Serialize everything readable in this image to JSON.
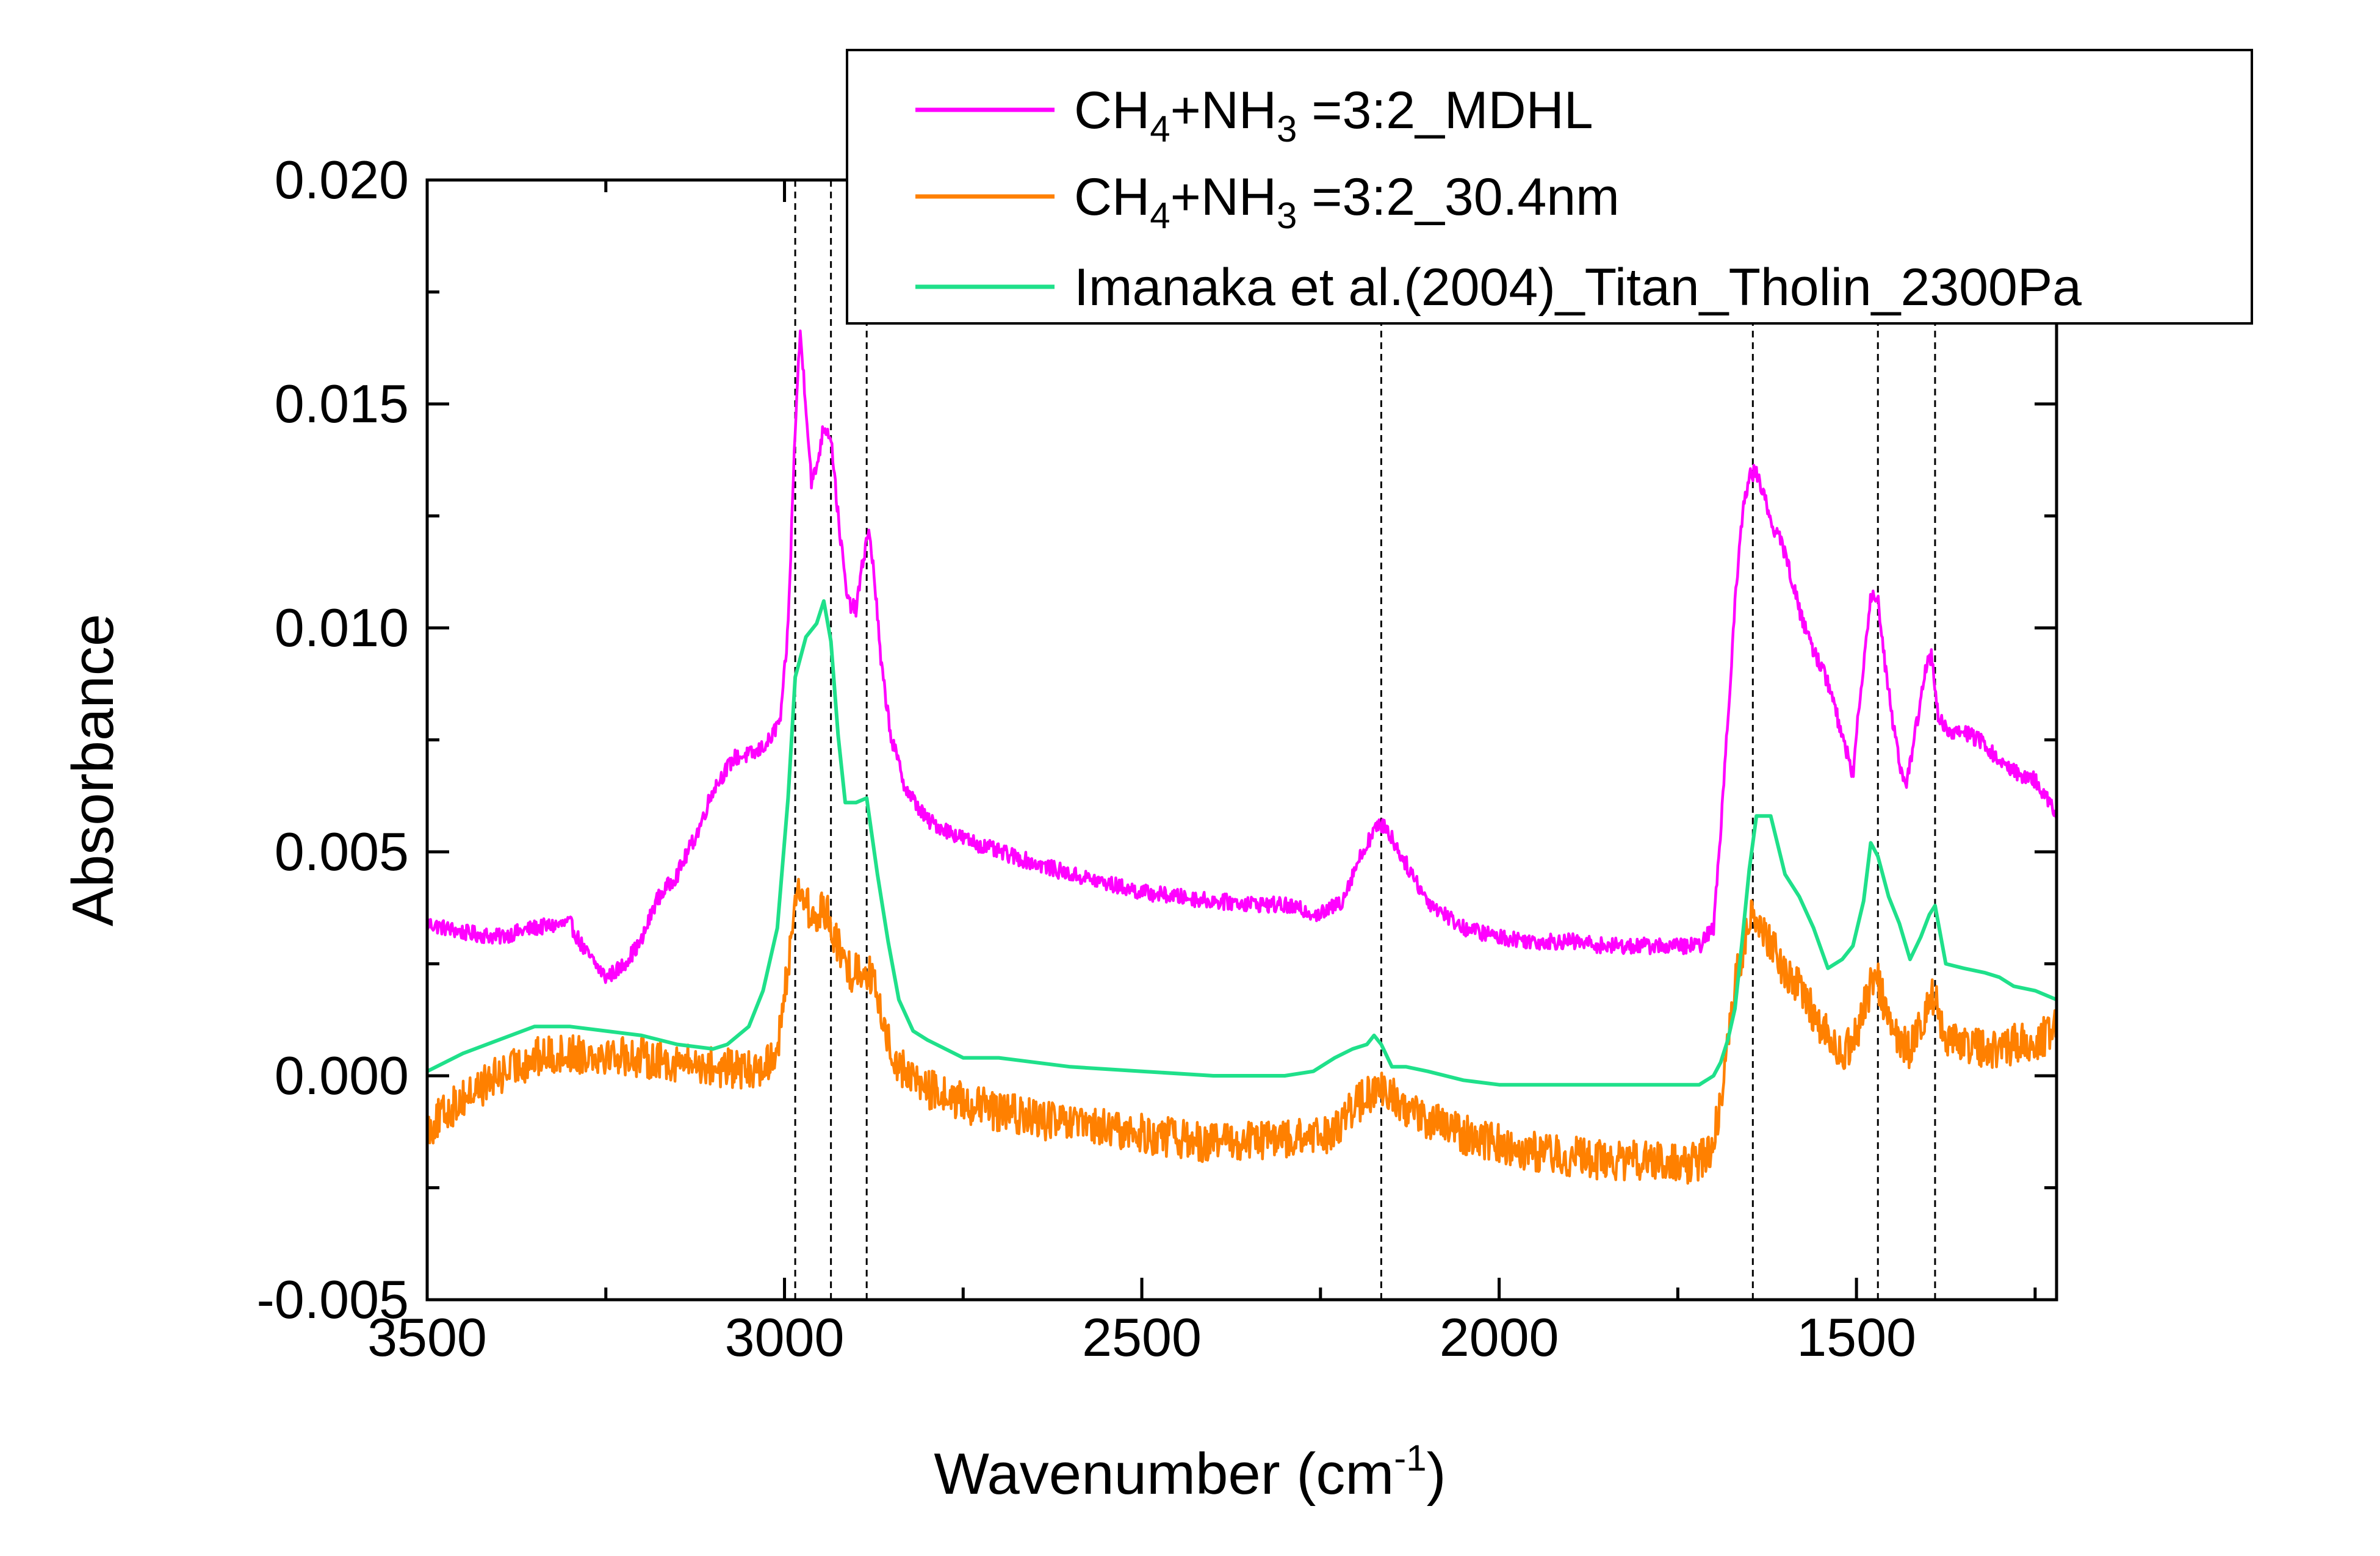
{
  "chart_data": {
    "type": "line",
    "xlabel": "Wavenumber (cm",
    "xlabel_superscript": "-1",
    "xlabel_suffix": ")",
    "ylabel": "Absorbance",
    "xlim": [
      3500,
      1220
    ],
    "ylim": [
      -0.005,
      0.02
    ],
    "x_reversed": true,
    "x_ticks": [
      {
        "value": 3500,
        "label": "3500"
      },
      {
        "value": 3000,
        "label": "3000"
      },
      {
        "value": 2500,
        "label": "2500"
      },
      {
        "value": 2000,
        "label": "2000"
      },
      {
        "value": 1500,
        "label": "1500"
      }
    ],
    "y_ticks": [
      {
        "value": -0.005,
        "label": "-0.005"
      },
      {
        "value": 0.0,
        "label": "0.000"
      },
      {
        "value": 0.005,
        "label": "0.005"
      },
      {
        "value": 0.01,
        "label": "0.010"
      },
      {
        "value": 0.015,
        "label": "0.015"
      },
      {
        "value": 0.02,
        "label": "0.020"
      }
    ],
    "reference_lines_x": [
      2985,
      2935,
      2885,
      2165,
      1645,
      1470,
      1390
    ],
    "legend_position": "top-right",
    "series": [
      {
        "legend_parts": [
          "CH",
          "4",
          "+NH",
          "3",
          " =3:2_MDHL"
        ],
        "color": "#ff00ff",
        "noise": 0.00018,
        "points": [
          [
            3500,
            0.0034
          ],
          [
            3450,
            0.0032
          ],
          [
            3400,
            0.0031
          ],
          [
            3350,
            0.0033
          ],
          [
            3300,
            0.0034
          ],
          [
            3280,
            0.0028
          ],
          [
            3250,
            0.0022
          ],
          [
            3230,
            0.0024
          ],
          [
            3200,
            0.003
          ],
          [
            3180,
            0.0039
          ],
          [
            3150,
            0.0045
          ],
          [
            3120,
            0.0055
          ],
          [
            3100,
            0.0064
          ],
          [
            3070,
            0.0071
          ],
          [
            3040,
            0.0072
          ],
          [
            3020,
            0.0075
          ],
          [
            3005,
            0.008
          ],
          [
            2995,
            0.01
          ],
          [
            2985,
            0.0145
          ],
          [
            2978,
            0.0166
          ],
          [
            2970,
            0.015
          ],
          [
            2962,
            0.0132
          ],
          [
            2955,
            0.0136
          ],
          [
            2945,
            0.0145
          ],
          [
            2935,
            0.0143
          ],
          [
            2925,
            0.0125
          ],
          [
            2912,
            0.0106
          ],
          [
            2900,
            0.0104
          ],
          [
            2890,
            0.0115
          ],
          [
            2883,
            0.0122
          ],
          [
            2875,
            0.0113
          ],
          [
            2865,
            0.0092
          ],
          [
            2850,
            0.0075
          ],
          [
            2830,
            0.0064
          ],
          [
            2800,
            0.0057
          ],
          [
            2750,
            0.0053
          ],
          [
            2700,
            0.005
          ],
          [
            2600,
            0.0045
          ],
          [
            2500,
            0.0041
          ],
          [
            2400,
            0.0039
          ],
          [
            2300,
            0.0038
          ],
          [
            2250,
            0.0036
          ],
          [
            2220,
            0.0039
          ],
          [
            2200,
            0.0047
          ],
          [
            2175,
            0.0055
          ],
          [
            2160,
            0.0056
          ],
          [
            2140,
            0.005
          ],
          [
            2100,
            0.0039
          ],
          [
            2050,
            0.0033
          ],
          [
            2000,
            0.0031
          ],
          [
            1950,
            0.003
          ],
          [
            1900,
            0.003
          ],
          [
            1850,
            0.0029
          ],
          [
            1800,
            0.0029
          ],
          [
            1750,
            0.0029
          ],
          [
            1720,
            0.0029
          ],
          [
            1700,
            0.0033
          ],
          [
            1690,
            0.0055
          ],
          [
            1680,
            0.008
          ],
          [
            1670,
            0.0105
          ],
          [
            1660,
            0.0125
          ],
          [
            1650,
            0.0134
          ],
          [
            1640,
            0.0135
          ],
          [
            1630,
            0.013
          ],
          [
            1620,
            0.0124
          ],
          [
            1600,
            0.0117
          ],
          [
            1580,
            0.0104
          ],
          [
            1560,
            0.0095
          ],
          [
            1540,
            0.0088
          ],
          [
            1520,
            0.0076
          ],
          [
            1505,
            0.0067
          ],
          [
            1495,
            0.0085
          ],
          [
            1480,
            0.0107
          ],
          [
            1470,
            0.0107
          ],
          [
            1460,
            0.0092
          ],
          [
            1450,
            0.008
          ],
          [
            1440,
            0.007
          ],
          [
            1430,
            0.0065
          ],
          [
            1420,
            0.0074
          ],
          [
            1405,
            0.009
          ],
          [
            1395,
            0.0094
          ],
          [
            1385,
            0.008
          ],
          [
            1370,
            0.0076
          ],
          [
            1350,
            0.0077
          ],
          [
            1320,
            0.0074
          ],
          [
            1300,
            0.007
          ],
          [
            1280,
            0.0068
          ],
          [
            1250,
            0.0066
          ],
          [
            1230,
            0.0061
          ],
          [
            1220,
            0.0057
          ]
        ]
      },
      {
        "legend_parts": [
          "CH",
          "4",
          "+NH",
          "3",
          " =3:2_30.4nm"
        ],
        "color": "#ff8000",
        "noise": 0.00045,
        "points": [
          [
            3500,
            -0.0012
          ],
          [
            3480,
            -0.0009
          ],
          [
            3450,
            -0.0005
          ],
          [
            3400,
            0.0
          ],
          [
            3350,
            0.0004
          ],
          [
            3300,
            0.0005
          ],
          [
            3250,
            0.0005
          ],
          [
            3200,
            0.0004
          ],
          [
            3150,
            0.0003
          ],
          [
            3100,
            0.0002
          ],
          [
            3050,
            0.0001
          ],
          [
            3020,
            0.0003
          ],
          [
            3005,
            0.001
          ],
          [
            2995,
            0.0025
          ],
          [
            2985,
            0.004
          ],
          [
            2975,
            0.0042
          ],
          [
            2965,
            0.0036
          ],
          [
            2955,
            0.0034
          ],
          [
            2945,
            0.0038
          ],
          [
            2935,
            0.0034
          ],
          [
            2920,
            0.0026
          ],
          [
            2905,
            0.0023
          ],
          [
            2890,
            0.0024
          ],
          [
            2880,
            0.0023
          ],
          [
            2870,
            0.0017
          ],
          [
            2855,
            0.0008
          ],
          [
            2840,
            0.0002
          ],
          [
            2800,
            -0.0003
          ],
          [
            2750,
            -0.0006
          ],
          [
            2700,
            -0.0008
          ],
          [
            2600,
            -0.0011
          ],
          [
            2500,
            -0.0013
          ],
          [
            2400,
            -0.0015
          ],
          [
            2300,
            -0.0014
          ],
          [
            2250,
            -0.0014
          ],
          [
            2220,
            -0.001
          ],
          [
            2190,
            -0.0005
          ],
          [
            2165,
            -0.0003
          ],
          [
            2140,
            -0.0006
          ],
          [
            2100,
            -0.001
          ],
          [
            2050,
            -0.0013
          ],
          [
            2000,
            -0.0015
          ],
          [
            1950,
            -0.0017
          ],
          [
            1900,
            -0.0018
          ],
          [
            1850,
            -0.0019
          ],
          [
            1800,
            -0.0019
          ],
          [
            1750,
            -0.002
          ],
          [
            1720,
            -0.0019
          ],
          [
            1700,
            -0.0015
          ],
          [
            1690,
            -0.0005
          ],
          [
            1680,
            0.0008
          ],
          [
            1670,
            0.002
          ],
          [
            1660,
            0.0028
          ],
          [
            1650,
            0.0035
          ],
          [
            1640,
            0.0037
          ],
          [
            1625,
            0.003
          ],
          [
            1600,
            0.0024
          ],
          [
            1580,
            0.002
          ],
          [
            1560,
            0.0014
          ],
          [
            1540,
            0.0009
          ],
          [
            1520,
            0.0005
          ],
          [
            1505,
            0.0007
          ],
          [
            1490,
            0.0015
          ],
          [
            1478,
            0.0021
          ],
          [
            1470,
            0.0021
          ],
          [
            1455,
            0.0013
          ],
          [
            1440,
            0.0007
          ],
          [
            1425,
            0.0006
          ],
          [
            1410,
            0.0012
          ],
          [
            1398,
            0.0017
          ],
          [
            1390,
            0.0018
          ],
          [
            1375,
            0.0008
          ],
          [
            1350,
            0.0007
          ],
          [
            1320,
            0.0006
          ],
          [
            1300,
            0.0006
          ],
          [
            1280,
            0.0007
          ],
          [
            1250,
            0.0008
          ],
          [
            1230,
            0.0009
          ],
          [
            1220,
            0.0011
          ]
        ]
      },
      {
        "legend_parts": [
          "Imanaka et al.(2004)_Titan_Tholin_2300Pa"
        ],
        "color": "#1fe08a",
        "noise": 0,
        "points": [
          [
            3500,
            0.0001
          ],
          [
            3450,
            0.0005
          ],
          [
            3400,
            0.0008
          ],
          [
            3350,
            0.0011
          ],
          [
            3300,
            0.0011
          ],
          [
            3250,
            0.001
          ],
          [
            3200,
            0.0009
          ],
          [
            3150,
            0.0007
          ],
          [
            3100,
            0.0006
          ],
          [
            3080,
            0.0007
          ],
          [
            3050,
            0.0011
          ],
          [
            3030,
            0.0019
          ],
          [
            3010,
            0.0033
          ],
          [
            2995,
            0.0062
          ],
          [
            2985,
            0.0089
          ],
          [
            2970,
            0.0098
          ],
          [
            2955,
            0.0101
          ],
          [
            2945,
            0.0106
          ],
          [
            2935,
            0.0097
          ],
          [
            2925,
            0.0076
          ],
          [
            2915,
            0.0061
          ],
          [
            2900,
            0.0061
          ],
          [
            2885,
            0.0062
          ],
          [
            2870,
            0.0045
          ],
          [
            2855,
            0.003
          ],
          [
            2840,
            0.0017
          ],
          [
            2820,
            0.001
          ],
          [
            2800,
            0.0008
          ],
          [
            2750,
            0.0004
          ],
          [
            2700,
            0.0004
          ],
          [
            2600,
            0.0002
          ],
          [
            2500,
            0.0001
          ],
          [
            2400,
            0.0
          ],
          [
            2300,
            0.0
          ],
          [
            2260,
            0.0001
          ],
          [
            2230,
            0.0004
          ],
          [
            2205,
            0.0006
          ],
          [
            2185,
            0.0007
          ],
          [
            2175,
            0.0009
          ],
          [
            2165,
            0.0007
          ],
          [
            2150,
            0.0002
          ],
          [
            2130,
            0.0002
          ],
          [
            2100,
            0.0001
          ],
          [
            2050,
            -0.0001
          ],
          [
            2000,
            -0.0002
          ],
          [
            1900,
            -0.0002
          ],
          [
            1800,
            -0.0002
          ],
          [
            1750,
            -0.0002
          ],
          [
            1720,
            -0.0002
          ],
          [
            1700,
            0.0
          ],
          [
            1690,
            0.0003
          ],
          [
            1680,
            0.0008
          ],
          [
            1670,
            0.0015
          ],
          [
            1660,
            0.003
          ],
          [
            1650,
            0.0046
          ],
          [
            1640,
            0.0058
          ],
          [
            1620,
            0.0058
          ],
          [
            1600,
            0.0045
          ],
          [
            1580,
            0.004
          ],
          [
            1560,
            0.0033
          ],
          [
            1540,
            0.0024
          ],
          [
            1520,
            0.0026
          ],
          [
            1505,
            0.0029
          ],
          [
            1490,
            0.0039
          ],
          [
            1480,
            0.0052
          ],
          [
            1470,
            0.0049
          ],
          [
            1455,
            0.004
          ],
          [
            1440,
            0.0034
          ],
          [
            1425,
            0.0026
          ],
          [
            1410,
            0.0031
          ],
          [
            1398,
            0.0036
          ],
          [
            1390,
            0.0038
          ],
          [
            1375,
            0.0025
          ],
          [
            1350,
            0.0024
          ],
          [
            1320,
            0.0023
          ],
          [
            1300,
            0.0022
          ],
          [
            1280,
            0.002
          ],
          [
            1250,
            0.0019
          ],
          [
            1220,
            0.0017
          ]
        ]
      }
    ]
  }
}
